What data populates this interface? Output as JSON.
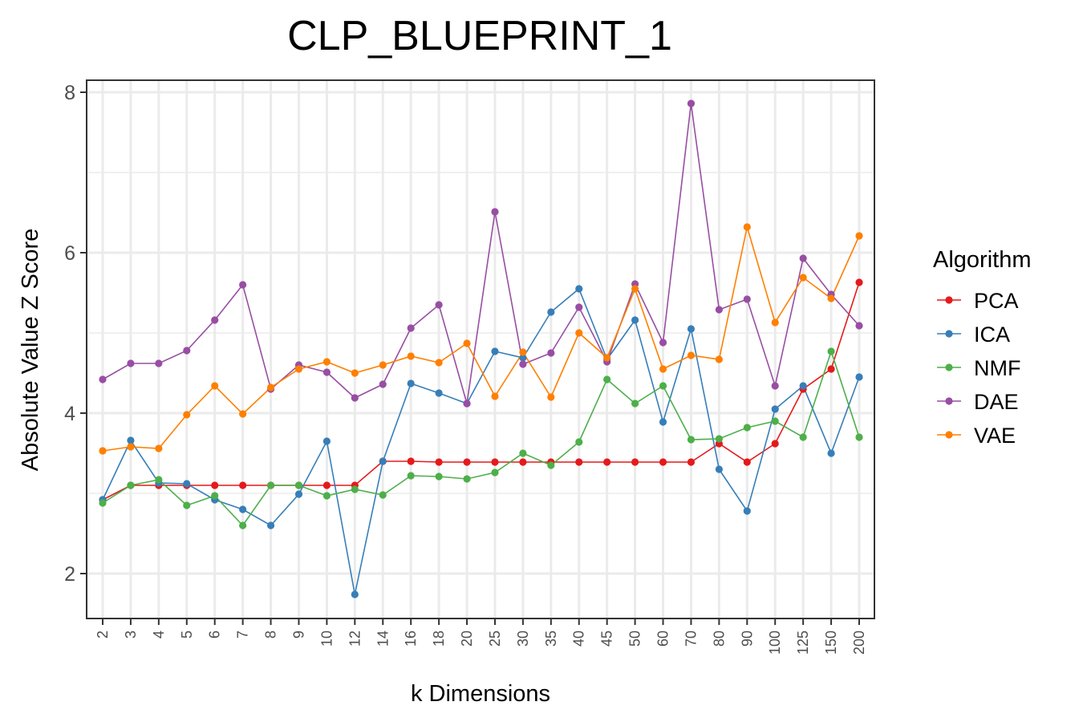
{
  "chart_data": {
    "type": "line",
    "title": "CLP_BLUEPRINT_1",
    "xlabel": "k Dimensions",
    "ylabel": "Absolute Value Z Score",
    "ylim": [
      1.45,
      8.15
    ],
    "yticks": [
      2,
      4,
      6,
      8
    ],
    "grid": true,
    "legend_title": "Algorithm",
    "legend_position": "right",
    "categories": [
      "2",
      "3",
      "4",
      "5",
      "6",
      "7",
      "8",
      "9",
      "10",
      "12",
      "14",
      "16",
      "18",
      "20",
      "25",
      "30",
      "35",
      "40",
      "45",
      "50",
      "60",
      "70",
      "80",
      "90",
      "100",
      "125",
      "150",
      "200"
    ],
    "series": [
      {
        "name": "PCA",
        "color": "#e41a1c",
        "values": [
          2.92,
          3.1,
          3.1,
          3.1,
          3.1,
          3.1,
          3.1,
          3.1,
          3.1,
          3.1,
          3.4,
          3.4,
          3.39,
          3.39,
          3.39,
          3.39,
          3.39,
          3.39,
          3.39,
          3.39,
          3.39,
          3.39,
          3.62,
          3.39,
          3.62,
          4.3,
          4.55,
          5.63
        ]
      },
      {
        "name": "ICA",
        "color": "#377eb8",
        "values": [
          2.92,
          3.66,
          3.13,
          3.12,
          2.92,
          2.8,
          2.6,
          2.99,
          3.65,
          1.74,
          3.4,
          4.37,
          4.25,
          4.12,
          4.77,
          4.69,
          5.26,
          5.55,
          4.67,
          5.16,
          3.89,
          5.05,
          3.3,
          2.78,
          4.05,
          4.34,
          3.5,
          4.45
        ]
      },
      {
        "name": "NMF",
        "color": "#4daf4a",
        "values": [
          2.88,
          3.1,
          3.17,
          2.85,
          2.97,
          2.6,
          3.1,
          3.1,
          2.97,
          3.05,
          2.98,
          3.22,
          3.21,
          3.18,
          3.26,
          3.5,
          3.35,
          3.64,
          4.42,
          4.12,
          4.34,
          3.67,
          3.68,
          3.82,
          3.9,
          3.7,
          4.77,
          3.7
        ]
      },
      {
        "name": "DAE",
        "color": "#984ea3",
        "values": [
          4.42,
          4.62,
          4.62,
          4.78,
          5.16,
          5.6,
          4.3,
          4.6,
          4.51,
          4.19,
          4.36,
          5.06,
          5.35,
          4.12,
          6.51,
          4.61,
          4.75,
          5.32,
          4.64,
          5.61,
          4.88,
          7.86,
          5.29,
          5.42,
          4.34,
          5.93,
          5.48,
          5.09
        ]
      },
      {
        "name": "VAE",
        "color": "#ff7f00",
        "values": [
          3.53,
          3.58,
          3.56,
          3.98,
          4.34,
          3.99,
          4.32,
          4.55,
          4.64,
          4.5,
          4.6,
          4.71,
          4.63,
          4.87,
          4.21,
          4.76,
          4.2,
          5.0,
          4.69,
          5.55,
          4.55,
          4.72,
          4.67,
          6.32,
          5.13,
          5.69,
          5.43,
          6.21
        ]
      }
    ]
  }
}
